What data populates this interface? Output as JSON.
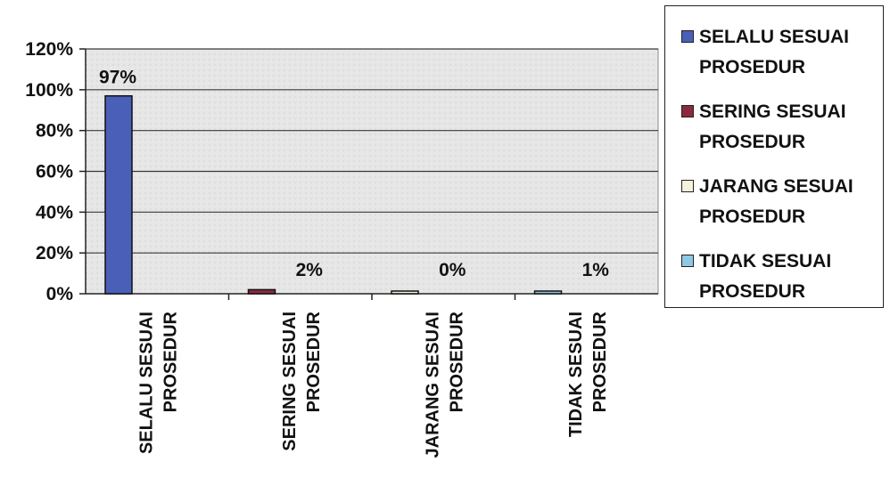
{
  "chart_data": {
    "type": "bar",
    "categories": [
      "SELALU SESUAI PROSEDUR",
      "SERING SESUAI PROSEDUR",
      "JARANG SESUAI PROSEDUR",
      "TIDAK SESUAI PROSEDUR"
    ],
    "category_label_lines": [
      [
        "SELALU SESUAI",
        "PROSEDUR"
      ],
      [
        "SERING SESUAI",
        "PROSEDUR"
      ],
      [
        "JARANG SESUAI",
        "PROSEDUR"
      ],
      [
        "TIDAK SESUAI",
        "PROSEDUR"
      ]
    ],
    "values": [
      97,
      2,
      0,
      1
    ],
    "data_labels": [
      "97%",
      "2%",
      "0%",
      "1%"
    ],
    "bar_colors": [
      "#4a5fb8",
      "#8b2a3e",
      "#f5f2dc",
      "#8fc8e4"
    ],
    "yticks": [
      "0%",
      "20%",
      "40%",
      "60%",
      "80%",
      "100%",
      "120%"
    ],
    "ylim": [
      0,
      120
    ],
    "grid": true,
    "legend_position": "right",
    "legend": [
      {
        "label": "SELALU SESUAI\nPROSEDUR",
        "color": "#4a5fb8"
      },
      {
        "label": "SERING SESUAI\nPROSEDUR",
        "color": "#8b2a3e"
      },
      {
        "label": "JARANG SESUAI\nPROSEDUR",
        "color": "#f5f2dc"
      },
      {
        "label": "TIDAK SESUAI\nPROSEDUR",
        "color": "#8fc8e4"
      }
    ],
    "title": "",
    "xlabel": "",
    "ylabel": ""
  }
}
